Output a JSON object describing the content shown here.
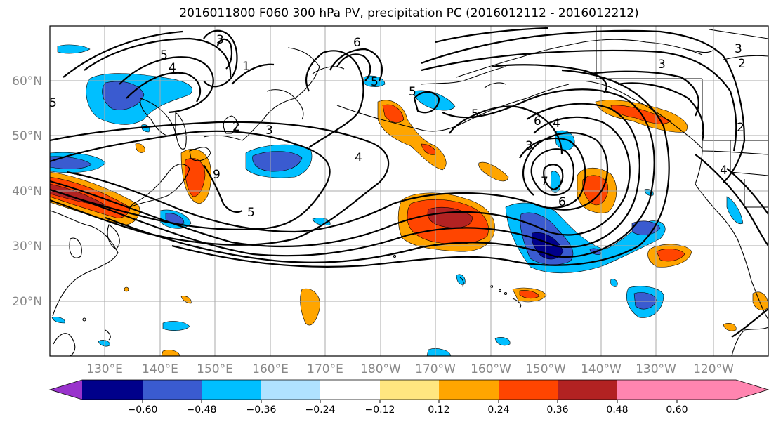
{
  "title": "2016011800 F060 300 hPa PV, precipitation PC (2016012112 - 2016012212)",
  "map": {
    "lat_labels": [
      "60°N",
      "50°N",
      "40°N",
      "30°N",
      "20°N"
    ],
    "lon_labels": [
      "130°E",
      "140°E",
      "150°E",
      "160°E",
      "170°E",
      "180°W",
      "170°W",
      "160°W",
      "150°W",
      "140°W",
      "130°W",
      "120°W"
    ],
    "contour_labels": [
      "5",
      "4",
      "3",
      "1",
      "6",
      "5",
      "5",
      "2",
      "3",
      "5",
      "4",
      "9",
      "5",
      "6",
      "4",
      "3",
      "5",
      "3",
      "2",
      "2",
      "7",
      "6",
      "4",
      "3"
    ],
    "grid_color": "#aaaaaa"
  },
  "colorbar": {
    "tick_labels": [
      "−0.60",
      "−0.48",
      "−0.36",
      "−0.24",
      "−0.12",
      "0.12",
      "0.24",
      "0.36",
      "0.48",
      "0.60"
    ],
    "colors": [
      "#9933cc",
      "#00008b",
      "#3a5bd0",
      "#00bfff",
      "#b0e2ff",
      "#ffffff",
      "#ffe680",
      "#ffa500",
      "#ff4500",
      "#b22222",
      "#ff85b0"
    ]
  }
}
